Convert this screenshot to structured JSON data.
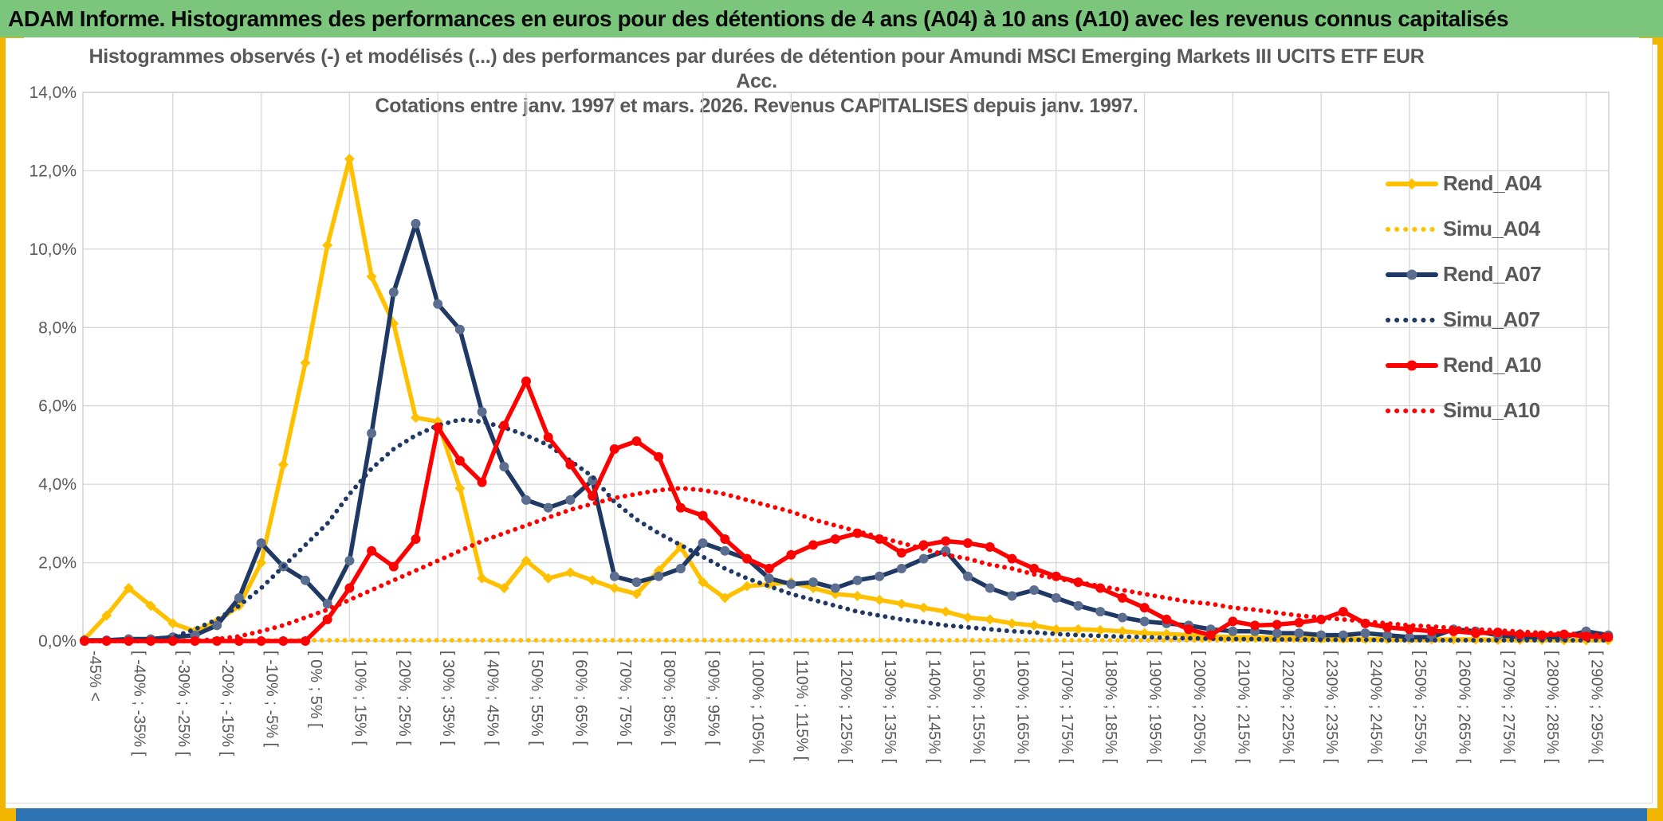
{
  "banner": {
    "title": "ADAM Informe. Histogrammes des performances en euros pour des détentions de 4 ans (A04) à 10 ans (A10) avec les revenus connus capitalisés",
    "bg_color": "#7cc57c"
  },
  "frame": {
    "gold_color": "#f2b500",
    "bottom_bar_color": "#2e74b5"
  },
  "chart_data": {
    "type": "line",
    "title_line1": "Histogrammes observés (-) et modélisés (...) des performances par durées de détention pour Amundi MSCI Emerging Markets III UCITS ETF EUR",
    "title_line2": "Acc.",
    "subtitle": "Cotations entre janv. 1997 et mars. 2026. Revenus CAPITALISES depuis janv. 1997.",
    "grid": {
      "h_step_pct": 2,
      "v_step_bins": 4,
      "color": "#d9d9d9"
    },
    "legend_position": "right",
    "y_axis": {
      "min": 0,
      "max": 14,
      "tick_step": 2,
      "tick_labels_top_down": [
        "14,0%",
        "12,0%",
        "10,0%",
        "8,0%",
        "6,0%",
        "4,0%",
        "2,0%",
        "0,0%"
      ]
    },
    "categories": [
      "-45% <",
      "",
      "[ -40% ; -35% [",
      "",
      "[ -30% ; -25% [",
      "",
      "[ -20% ; -15% [",
      "",
      "[ -10% ; -5% [",
      "",
      "[ 0% ; 5% [",
      "",
      "[ 10% ; 15% [",
      "",
      "[ 20% ; 25% [",
      "",
      "[ 30% ; 35% [",
      "",
      "[ 40% ; 45% [",
      "",
      "[ 50% ; 55% [",
      "",
      "[ 60% ; 65% [",
      "",
      "[ 70% ; 75% [",
      "",
      "[ 80% ; 85% [",
      "",
      "[ 90% ; 95% [",
      "",
      "[ 100% ; 105% [",
      "",
      "[ 110% ; 115% [",
      "",
      "[ 120% ; 125% [",
      "",
      "[ 130% ; 135% [",
      "",
      "[ 140% ; 145% [",
      "",
      "[ 150% ; 155% [",
      "",
      "[ 160% ; 165% [",
      "",
      "[ 170% ; 175% [",
      "",
      "[ 180% ; 185% [",
      "",
      "[ 190% ; 195% [",
      "",
      "[ 200% ; 205% [",
      "",
      "[ 210% ; 215% [",
      "",
      "[ 220% ; 225% [",
      "",
      "[ 230% ; 235% [",
      "",
      "[ 240% ; 245% [",
      "",
      "[ 250% ; 255% [",
      "",
      "[ 260% ; 265% [",
      "",
      "[ 270% ; 275% [",
      "",
      "[ 280% ; 285% [",
      "",
      "[ 290% ; 295% [",
      ""
    ],
    "series": [
      {
        "name": "Rend_A04",
        "color": "#FFC000",
        "style": "solid",
        "marker": "diamond",
        "marker_color": "#FFC000",
        "values": [
          0.05,
          0.65,
          1.35,
          0.9,
          0.45,
          0.25,
          0.5,
          0.9,
          2.0,
          4.5,
          7.1,
          10.1,
          12.3,
          9.3,
          8.1,
          5.7,
          5.6,
          3.9,
          1.6,
          1.35,
          2.05,
          1.6,
          1.75,
          1.55,
          1.35,
          1.2,
          1.8,
          2.4,
          1.5,
          1.1,
          1.4,
          1.45,
          1.5,
          1.35,
          1.2,
          1.15,
          1.05,
          0.95,
          0.85,
          0.75,
          0.6,
          0.55,
          0.45,
          0.4,
          0.3,
          0.3,
          0.28,
          0.25,
          0.2,
          0.18,
          0.15,
          0.12,
          0.1,
          0.1,
          0.08,
          0.08,
          0.06,
          0.06,
          0.05,
          0.05,
          0.05,
          0.04,
          0.04,
          0.04,
          0.03,
          0.03,
          0.03,
          0.02,
          0.02,
          0.02
        ]
      },
      {
        "name": "Simu_A04",
        "color": "#FFC000",
        "style": "dotted",
        "marker": "none",
        "marker_color": "#FFC000",
        "values": [
          0.02,
          0.02,
          0.02,
          0.02,
          0.02,
          0.02,
          0.02,
          0.02,
          0.02,
          0.02,
          0.02,
          0.02,
          0.02,
          0.02,
          0.02,
          0.02,
          0.02,
          0.02,
          0.02,
          0.02,
          0.02,
          0.02,
          0.02,
          0.02,
          0.02,
          0.02,
          0.02,
          0.02,
          0.02,
          0.02,
          0.02,
          0.02,
          0.02,
          0.02,
          0.02,
          0.02,
          0.02,
          0.02,
          0.02,
          0.02,
          0.02,
          0.02,
          0.02,
          0.02,
          0.02,
          0.02,
          0.02,
          0.02,
          0.02,
          0.02,
          0.02,
          0.02,
          0.02,
          0.02,
          0.02,
          0.02,
          0.02,
          0.02,
          0.02,
          0.02,
          0.02,
          0.02,
          0.02,
          0.02,
          0.02,
          0.02,
          0.02,
          0.02,
          0.02,
          0.02
        ]
      },
      {
        "name": "Rend_A07",
        "color": "#1F3864",
        "style": "solid",
        "marker": "circle",
        "marker_color": "#5B6E8F",
        "values": [
          0.02,
          0.02,
          0.05,
          0.05,
          0.1,
          0.15,
          0.4,
          1.1,
          2.5,
          1.9,
          1.55,
          0.95,
          2.05,
          5.3,
          8.9,
          10.65,
          8.6,
          7.95,
          5.85,
          4.45,
          3.6,
          3.4,
          3.6,
          4.1,
          1.65,
          1.5,
          1.65,
          1.85,
          2.5,
          2.3,
          2.1,
          1.6,
          1.45,
          1.5,
          1.35,
          1.55,
          1.65,
          1.85,
          2.1,
          2.3,
          1.65,
          1.35,
          1.15,
          1.3,
          1.1,
          0.9,
          0.75,
          0.6,
          0.5,
          0.45,
          0.4,
          0.3,
          0.25,
          0.25,
          0.2,
          0.2,
          0.15,
          0.15,
          0.2,
          0.15,
          0.1,
          0.1,
          0.3,
          0.25,
          0.15,
          0.1,
          0.1,
          0.1,
          0.25,
          0.15
        ]
      },
      {
        "name": "Simu_A07",
        "color": "#1F3864",
        "style": "dotted",
        "marker": "none",
        "marker_color": "#1F3864",
        "values": [
          0,
          0,
          0.02,
          0.05,
          0.1,
          0.3,
          0.55,
          0.9,
          1.35,
          1.9,
          2.45,
          3.0,
          3.75,
          4.4,
          4.9,
          5.25,
          5.5,
          5.65,
          5.6,
          5.45,
          5.25,
          5.0,
          4.6,
          4.2,
          3.55,
          3.1,
          2.75,
          2.45,
          2.15,
          1.85,
          1.6,
          1.4,
          1.2,
          1.05,
          0.9,
          0.75,
          0.65,
          0.55,
          0.48,
          0.4,
          0.35,
          0.3,
          0.25,
          0.22,
          0.18,
          0.15,
          0.13,
          0.11,
          0.1,
          0.08,
          0.07,
          0.06,
          0.05,
          0.05,
          0.04,
          0.04,
          0.03,
          0.03,
          0.03,
          0.02,
          0.02,
          0.02,
          0.02,
          0.02,
          0.02,
          0.02,
          0.02,
          0.02,
          0.02,
          0.02
        ]
      },
      {
        "name": "Rend_A10",
        "color": "#FF0000",
        "style": "solid",
        "marker": "circle",
        "marker_color": "#FF0000",
        "values": [
          0,
          0,
          0,
          0,
          0,
          0,
          0,
          0,
          0,
          0,
          0,
          0.55,
          1.35,
          2.3,
          1.9,
          2.6,
          5.45,
          4.6,
          4.05,
          5.5,
          6.63,
          5.2,
          4.5,
          3.7,
          4.9,
          5.1,
          4.7,
          3.4,
          3.2,
          2.6,
          2.1,
          1.85,
          2.2,
          2.45,
          2.6,
          2.75,
          2.6,
          2.25,
          2.45,
          2.55,
          2.5,
          2.4,
          2.1,
          1.85,
          1.65,
          1.5,
          1.35,
          1.1,
          0.85,
          0.55,
          0.3,
          0.15,
          0.5,
          0.4,
          0.42,
          0.47,
          0.55,
          0.75,
          0.45,
          0.35,
          0.3,
          0.25,
          0.25,
          0.2,
          0.22,
          0.17,
          0.15,
          0.17,
          0.12,
          0.1
        ]
      },
      {
        "name": "Simu_A10",
        "color": "#FF0000",
        "style": "dotted",
        "marker": "none",
        "marker_color": "#FF0000",
        "values": [
          0,
          0,
          0,
          0,
          0,
          0,
          0.05,
          0.12,
          0.25,
          0.4,
          0.6,
          0.8,
          1.05,
          1.3,
          1.55,
          1.8,
          2.05,
          2.3,
          2.55,
          2.75,
          2.95,
          3.15,
          3.35,
          3.5,
          3.65,
          3.75,
          3.85,
          3.9,
          3.85,
          3.75,
          3.6,
          3.45,
          3.3,
          3.1,
          2.95,
          2.8,
          2.65,
          2.5,
          2.35,
          2.2,
          2.1,
          1.95,
          1.85,
          1.7,
          1.6,
          1.5,
          1.4,
          1.3,
          1.2,
          1.1,
          1.0,
          0.95,
          0.85,
          0.8,
          0.72,
          0.65,
          0.6,
          0.55,
          0.5,
          0.45,
          0.4,
          0.37,
          0.33,
          0.3,
          0.27,
          0.24,
          0.21,
          0.19,
          0.17,
          0.15
        ]
      }
    ]
  }
}
